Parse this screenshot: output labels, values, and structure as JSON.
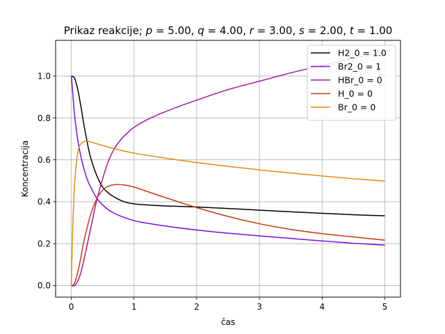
{
  "chart_data": {
    "type": "line",
    "title": "Prikaz reakcije; p = 5.00, q = 4.00, r = 3.00, s = 2.00, t = 1.00",
    "title_parts": [
      {
        "t": "Prikaz reakcije; ",
        "i": false
      },
      {
        "t": "p",
        "i": true
      },
      {
        "t": " = 5.00, ",
        "i": false
      },
      {
        "t": "q",
        "i": true
      },
      {
        "t": " = 4.00, ",
        "i": false
      },
      {
        "t": "r",
        "i": true
      },
      {
        "t": " = 3.00, ",
        "i": false
      },
      {
        "t": "s",
        "i": true
      },
      {
        "t": " = 2.00, ",
        "i": false
      },
      {
        "t": "t",
        "i": true
      },
      {
        "t": " = 1.00",
        "i": false
      }
    ],
    "xlabel": "čas",
    "ylabel": "Koncentracija",
    "xlim": [
      -0.25,
      5.25
    ],
    "ylim": [
      -0.055,
      1.17
    ],
    "xticks": [
      0,
      1,
      2,
      3,
      4,
      5
    ],
    "yticks": [
      0.0,
      0.2,
      0.4,
      0.6,
      0.8,
      1.0
    ],
    "xtick_labels": [
      "0",
      "1",
      "2",
      "3",
      "4",
      "5"
    ],
    "ytick_labels": [
      "0.0",
      "0.2",
      "0.4",
      "0.6",
      "0.8",
      "1.0"
    ],
    "grid": true,
    "legend_position": "top-right",
    "series": [
      {
        "name": "H2_0 = 1.0",
        "color": "#000000",
        "x": [
          0,
          0.05,
          0.1,
          0.15,
          0.2,
          0.25,
          0.3,
          0.4,
          0.5,
          0.6,
          0.7,
          0.8,
          0.9,
          1.0,
          1.2,
          1.5,
          2.0,
          2.5,
          3.0,
          3.5,
          4.0,
          4.5,
          5.0
        ],
        "y": [
          1.0,
          0.99,
          0.94,
          0.86,
          0.77,
          0.69,
          0.62,
          0.53,
          0.47,
          0.44,
          0.42,
          0.405,
          0.395,
          0.39,
          0.385,
          0.38,
          0.375,
          0.368,
          0.36,
          0.352,
          0.345,
          0.338,
          0.333
        ]
      },
      {
        "name": " Br2_0 = 1",
        "color": "#7a0ee8",
        "x": [
          0,
          0.02,
          0.05,
          0.1,
          0.15,
          0.2,
          0.25,
          0.3,
          0.4,
          0.5,
          0.6,
          0.7,
          0.8,
          1.0,
          1.2,
          1.5,
          2.0,
          2.5,
          3.0,
          3.5,
          4.0,
          4.5,
          5.0
        ],
        "y": [
          1.0,
          0.93,
          0.82,
          0.7,
          0.62,
          0.56,
          0.51,
          0.475,
          0.42,
          0.385,
          0.36,
          0.343,
          0.33,
          0.31,
          0.298,
          0.284,
          0.265,
          0.25,
          0.237,
          0.225,
          0.213,
          0.202,
          0.193
        ]
      },
      {
        "name": "HBr_0 = 0",
        "color": "#a4159f",
        "x": [
          0,
          0.05,
          0.1,
          0.15,
          0.2,
          0.3,
          0.4,
          0.5,
          0.6,
          0.7,
          0.8,
          0.9,
          1.0,
          1.2,
          1.5,
          2.0,
          2.5,
          3.0,
          3.5,
          4.0,
          4.5,
          5.0
        ],
        "y": [
          0,
          0.0,
          0.02,
          0.06,
          0.12,
          0.26,
          0.4,
          0.51,
          0.6,
          0.66,
          0.7,
          0.73,
          0.755,
          0.79,
          0.83,
          0.885,
          0.935,
          0.975,
          1.015,
          1.05,
          1.085,
          1.115
        ]
      },
      {
        "name": "H_0 = 0",
        "color": "#c23a10",
        "x": [
          0,
          0.05,
          0.1,
          0.15,
          0.2,
          0.3,
          0.4,
          0.5,
          0.6,
          0.7,
          0.8,
          0.9,
          1.0,
          1.2,
          1.5,
          2.0,
          2.5,
          3.0,
          3.5,
          4.0,
          4.5,
          5.0
        ],
        "y": [
          0,
          0.01,
          0.06,
          0.13,
          0.21,
          0.33,
          0.41,
          0.455,
          0.475,
          0.482,
          0.481,
          0.477,
          0.47,
          0.45,
          0.42,
          0.372,
          0.33,
          0.295,
          0.268,
          0.248,
          0.232,
          0.217
        ]
      },
      {
        "name": "Br_0 = 0",
        "color": "#e68a0c",
        "x": [
          0,
          0.02,
          0.05,
          0.1,
          0.15,
          0.2,
          0.25,
          0.3,
          0.4,
          0.5,
          0.7,
          1.0,
          1.5,
          2.0,
          2.5,
          3.0,
          3.5,
          4.0,
          4.5,
          5.0
        ],
        "y": [
          0,
          0.25,
          0.47,
          0.63,
          0.675,
          0.687,
          0.689,
          0.686,
          0.677,
          0.668,
          0.652,
          0.632,
          0.608,
          0.587,
          0.569,
          0.552,
          0.537,
          0.523,
          0.51,
          0.498
        ]
      }
    ]
  }
}
